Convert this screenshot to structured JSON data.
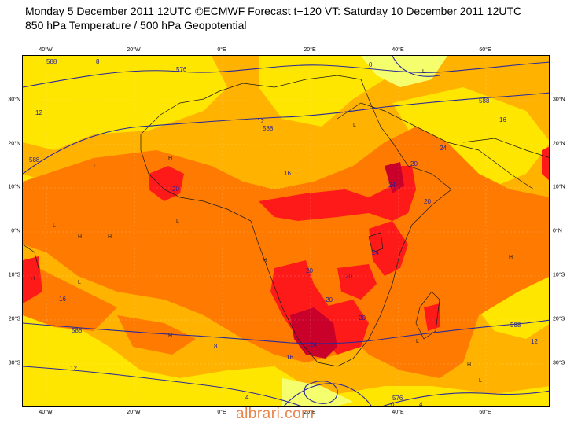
{
  "title": {
    "line1": "Monday 5 December 2011 12UTC ©ECMWF Forecast t+120 VT: Saturday 10 December 2011 12UTC",
    "line2": "850 hPa Temperature / 500 hPa Geopotential"
  },
  "axes": {
    "lon_labels": [
      "40°W",
      "20°W",
      "0°E",
      "20°E",
      "40°E",
      "60°E"
    ],
    "lat_labels": [
      "30°N",
      "20°N",
      "10°N",
      "0°N",
      "10°S",
      "20°S",
      "30°S"
    ]
  },
  "colors": {
    "background_field": "#ffb300",
    "warm": "#ff7a00",
    "hot": "#ff1a1a",
    "very_hot": "#c8002a",
    "cool": "#ffe600",
    "cold": "#f5ff6e",
    "contour": "#2a2a9a",
    "coast": "#1a1a1a"
  },
  "temperature_labels": [
    "12",
    "12",
    "12",
    "12",
    "16",
    "16",
    "16",
    "16",
    "20",
    "20",
    "20",
    "20",
    "20",
    "20",
    "20",
    "24",
    "24",
    "24",
    "24",
    "8",
    "8",
    "4",
    "4",
    "0",
    "0"
  ],
  "geopotential_labels": [
    "588",
    "576",
    "588",
    "588",
    "588",
    "588",
    "576",
    "588"
  ],
  "pressure_markers": [
    "H",
    "L"
  ],
  "watermark": "albrari.com"
}
